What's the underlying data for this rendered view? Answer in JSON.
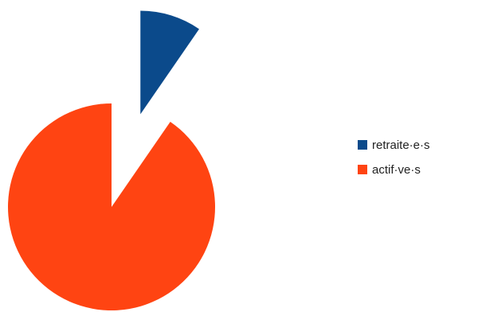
{
  "chart_data": {
    "type": "pie",
    "exploded": true,
    "start_angle_deg": 0,
    "direction": "clockwise",
    "series": [
      {
        "name": "retraite·e·s",
        "value": 9.6,
        "color": "#0B4A8B"
      },
      {
        "name": "actif·ve·s",
        "value": 90.4,
        "color": "#FF4412"
      }
    ],
    "legend": {
      "position": "right",
      "items": [
        "retraite·e·s",
        "actif·ve·s"
      ]
    },
    "title": "",
    "grid": false
  }
}
